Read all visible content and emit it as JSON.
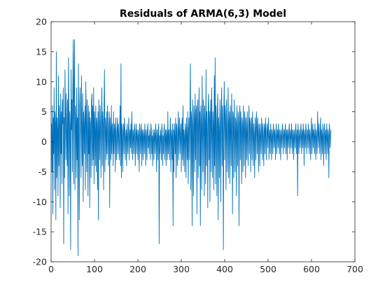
{
  "chart_data": {
    "type": "line",
    "title": "Residuals of ARMA(6,3) Model",
    "xlabel": "",
    "ylabel": "",
    "xlim": [
      0,
      700
    ],
    "ylim": [
      -20,
      20
    ],
    "x_ticks": [
      0,
      100,
      200,
      300,
      400,
      500,
      600,
      700
    ],
    "y_ticks": [
      -20,
      -15,
      -10,
      -5,
      0,
      5,
      10,
      15,
      20
    ],
    "grid": false,
    "legend": "none",
    "series_color": "#0072BD",
    "series": [
      {
        "x_start": 1,
        "x_step": 1,
        "values": [
          3,
          -5,
          6,
          -12,
          4,
          -2,
          9,
          -8,
          5,
          3,
          -13,
          15,
          -6,
          4,
          2,
          -9,
          11,
          -4,
          6,
          3,
          -11,
          8,
          -2,
          5,
          -7,
          7,
          3,
          9,
          -17,
          4,
          -6,
          12,
          5,
          -3,
          8,
          1,
          -4,
          7,
          -12,
          14,
          6,
          -9,
          5,
          3,
          -18,
          12,
          2,
          7,
          -5,
          9,
          17,
          -7,
          10,
          17,
          -8,
          6,
          3,
          -6,
          9,
          -3,
          4,
          -19,
          13,
          2,
          -13,
          6,
          9,
          2,
          -6,
          11,
          3,
          -4,
          8,
          -10,
          5,
          3,
          -2,
          6,
          -8,
          10,
          4,
          -5,
          7,
          2,
          -9,
          6,
          -2,
          5,
          -11,
          4,
          3,
          -6,
          7,
          8,
          -4,
          6,
          -3,
          9,
          -7,
          5,
          2,
          -4,
          6,
          -5,
          4,
          3,
          -8,
          5,
          -13,
          7,
          2,
          -3,
          6,
          3,
          -6,
          4,
          9,
          -4,
          5,
          3,
          -8,
          6,
          12,
          -5,
          4,
          2,
          -3,
          5,
          -2,
          6,
          1,
          -4,
          3,
          5,
          -11,
          4,
          2,
          -3,
          6,
          -2,
          3,
          1,
          -4,
          5,
          -2,
          3,
          2,
          -5,
          4,
          1,
          -3,
          2,
          4,
          -2,
          3,
          1,
          -3,
          2,
          6,
          -4,
          13,
          -6,
          3,
          2,
          -5,
          1,
          3,
          -2,
          4,
          2,
          -3,
          1,
          2,
          -4,
          3,
          1,
          -2,
          2,
          4,
          -3,
          1,
          2,
          -1,
          3,
          -2,
          5,
          1,
          -3,
          2,
          1,
          -2,
          3,
          2,
          -4,
          1,
          3,
          -2,
          2,
          1,
          -3,
          2,
          1,
          -5,
          3,
          2,
          -2,
          1,
          3,
          -4,
          2,
          1,
          -3,
          2,
          1,
          -2,
          3,
          1,
          -4,
          2,
          1,
          -3,
          2,
          3,
          -1,
          1,
          -2,
          2,
          1,
          -3,
          3,
          2,
          -2,
          1,
          -4,
          2,
          1,
          -3,
          2,
          1,
          -2,
          3,
          1,
          -5,
          2,
          1,
          -3,
          2,
          3,
          -17,
          1,
          -2,
          2,
          1,
          -3,
          3,
          2,
          -4,
          1,
          -2,
          2,
          3,
          -3,
          1,
          2,
          -4,
          2,
          1,
          -3,
          5,
          -2,
          2,
          1,
          -3,
          2,
          4,
          -5,
          2,
          1,
          -3,
          3,
          -14,
          2,
          -5,
          3,
          1,
          -2,
          4,
          -6,
          3,
          2,
          -4,
          1,
          5,
          -3,
          2,
          4,
          -2,
          1,
          3,
          -5,
          2,
          4,
          -3,
          6,
          -4,
          2,
          1,
          -5,
          3,
          2,
          -6,
          4,
          1,
          -3,
          5,
          -7,
          2,
          4,
          -3,
          6,
          13,
          -8,
          5,
          3,
          -14,
          7,
          2,
          -9,
          6,
          4,
          -5,
          8,
          -3,
          5,
          6,
          -12,
          4,
          7,
          -6,
          3,
          9,
          -4,
          5,
          -14,
          6,
          3,
          -8,
          11,
          2,
          -5,
          7,
          4,
          -9,
          6,
          3,
          -7,
          12,
          -4,
          5,
          2,
          -11,
          6,
          8,
          -3,
          5,
          -10,
          4,
          7,
          -5,
          9,
          2,
          -6,
          5,
          3,
          -8,
          11,
          -4,
          14,
          -7,
          6,
          3,
          -9,
          5,
          8,
          -13,
          4,
          2,
          -6,
          7,
          3,
          -10,
          5,
          9,
          -4,
          6,
          2,
          -18,
          5,
          10,
          -3,
          6,
          4,
          -8,
          7,
          2,
          -5,
          4,
          9,
          -6,
          3,
          5,
          -7,
          6,
          2,
          -4,
          8,
          3,
          -12,
          5,
          4,
          -6,
          7,
          2,
          -5,
          4,
          3,
          -9,
          6,
          2,
          -4,
          5,
          3,
          -14,
          4,
          6,
          -3,
          5,
          2,
          -7,
          4,
          3,
          -5,
          6,
          2,
          -4,
          5,
          3,
          -6,
          4,
          2,
          -3,
          5,
          1,
          -4,
          3,
          6,
          -2,
          4,
          3,
          -5,
          2,
          4,
          -3,
          5,
          2,
          -4,
          3,
          1,
          -6,
          4,
          2,
          -3,
          5,
          3,
          -2,
          4,
          1,
          -5,
          3,
          2,
          -4,
          3,
          1,
          -2,
          4,
          2,
          -3,
          3,
          1,
          -4,
          2,
          3,
          -2,
          4,
          1,
          -3,
          2,
          3,
          -1,
          2,
          4,
          -3,
          1,
          2,
          -2,
          3,
          1,
          -3,
          2,
          1,
          -2,
          3,
          2,
          -1,
          2,
          1,
          -3,
          2,
          3,
          -2,
          1,
          2,
          -1,
          3,
          1,
          -2,
          2,
          1,
          -3,
          2,
          1,
          -1,
          3,
          2,
          -2,
          1,
          2,
          -1,
          2,
          3,
          -2,
          1,
          2,
          -3,
          2,
          1,
          -1,
          2,
          3,
          -2,
          1,
          2,
          -1,
          3,
          1,
          -2,
          2,
          1,
          -3,
          2,
          1,
          -1,
          2,
          3,
          -2,
          1,
          2,
          -9,
          3,
          1,
          -2,
          2,
          1,
          -1,
          2,
          3,
          -2,
          1,
          2,
          -1,
          3,
          1,
          -4,
          2,
          1,
          -1,
          3,
          2,
          -2,
          1,
          2,
          -1,
          3,
          1,
          -2,
          2,
          1,
          -3,
          2,
          4,
          -2,
          1,
          3,
          -1,
          2,
          1,
          -2,
          3,
          1,
          -3,
          2,
          1,
          -2,
          5,
          2,
          -1,
          3,
          1,
          -2,
          2,
          4,
          -3,
          2,
          1,
          -2,
          3,
          1,
          -4,
          2,
          3,
          -2,
          1,
          2,
          -3,
          3,
          1,
          -2,
          2,
          1,
          -6,
          3,
          2,
          -1,
          1,
          2
        ]
      }
    ]
  }
}
